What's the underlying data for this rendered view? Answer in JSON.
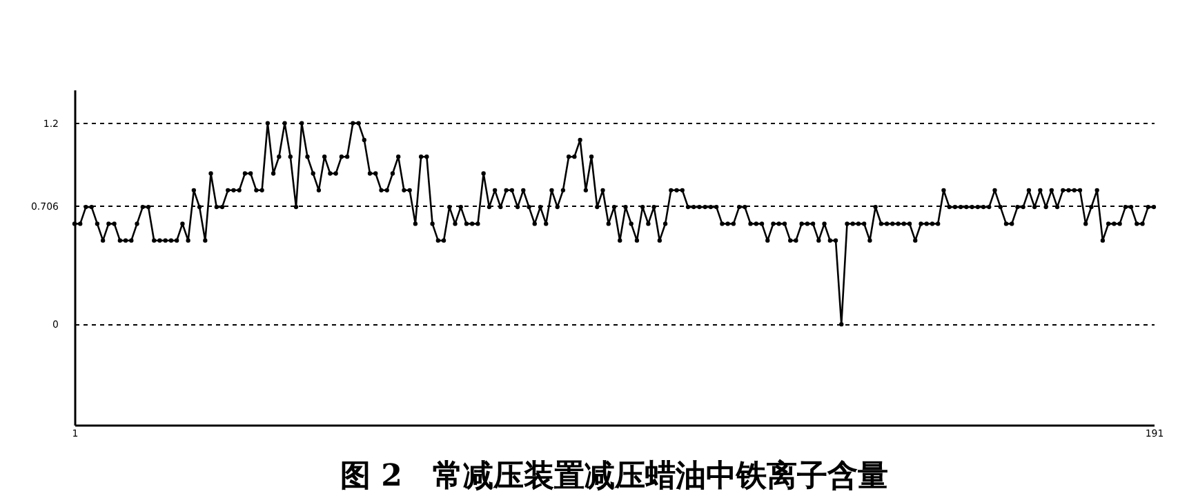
{
  "chart_data": {
    "type": "line",
    "title": "图 2　常减压装置减压蜡油中铁离子含量",
    "x": [
      1,
      2,
      3,
      4,
      5,
      6,
      7,
      8,
      9,
      10,
      11,
      12,
      13,
      14,
      15,
      16,
      17,
      18,
      19,
      20,
      21,
      22,
      23,
      24,
      25,
      26,
      27,
      28,
      29,
      30,
      31,
      32,
      33,
      34,
      35,
      36,
      37,
      38,
      39,
      40,
      41,
      42,
      43,
      44,
      45,
      46,
      47,
      48,
      49,
      50,
      51,
      52,
      53,
      54,
      55,
      56,
      57,
      58,
      59,
      60,
      61,
      62,
      63,
      64,
      65,
      66,
      67,
      68,
      69,
      70,
      71,
      72,
      73,
      74,
      75,
      76,
      77,
      78,
      79,
      80,
      81,
      82,
      83,
      84,
      85,
      86,
      87,
      88,
      89,
      90,
      91,
      92,
      93,
      94,
      95,
      96,
      97,
      98,
      99,
      100,
      101,
      102,
      103,
      104,
      105,
      106,
      107,
      108,
      109,
      110,
      111,
      112,
      113,
      114,
      115,
      116,
      117,
      118,
      119,
      120,
      121,
      122,
      123,
      124,
      125,
      126,
      127,
      128,
      129,
      130,
      131,
      132,
      133,
      134,
      135,
      136,
      137,
      138,
      139,
      140,
      141,
      142,
      143,
      144,
      145,
      146,
      147,
      148,
      149,
      150,
      151,
      152,
      153,
      154,
      155,
      156,
      157,
      158,
      159,
      160,
      161,
      162,
      163,
      164,
      165,
      166,
      167,
      168,
      169,
      170,
      171,
      172,
      173,
      174,
      175,
      176,
      177,
      178,
      179,
      180,
      181,
      182,
      183,
      184,
      185,
      186,
      187,
      188,
      189,
      190,
      191
    ],
    "series": [
      {
        "color": "#000000",
        "values": [
          0.6,
          0.6,
          0.7,
          0.7,
          0.6,
          0.5,
          0.6,
          0.6,
          0.5,
          0.5,
          0.5,
          0.6,
          0.7,
          0.7,
          0.5,
          0.5,
          0.5,
          0.5,
          0.5,
          0.6,
          0.5,
          0.8,
          0.7,
          0.5,
          0.9,
          0.7,
          0.7,
          0.8,
          0.8,
          0.8,
          0.9,
          0.9,
          0.8,
          0.8,
          1.2,
          0.9,
          1.0,
          1.2,
          1.0,
          0.7,
          1.2,
          1.0,
          0.9,
          0.8,
          1.0,
          0.9,
          0.9,
          1.0,
          1.0,
          1.2,
          1.2,
          1.1,
          0.9,
          0.9,
          0.8,
          0.8,
          0.9,
          1.0,
          0.8,
          0.8,
          0.6,
          1.0,
          1.0,
          0.6,
          0.5,
          0.5,
          0.7,
          0.6,
          0.7,
          0.6,
          0.6,
          0.6,
          0.9,
          0.7,
          0.8,
          0.7,
          0.8,
          0.8,
          0.7,
          0.8,
          0.7,
          0.6,
          0.7,
          0.6,
          0.8,
          0.7,
          0.8,
          1.0,
          1.0,
          1.1,
          0.8,
          1.0,
          0.7,
          0.8,
          0.6,
          0.7,
          0.5,
          0.7,
          0.6,
          0.5,
          0.7,
          0.6,
          0.7,
          0.5,
          0.6,
          0.8,
          0.8,
          0.8,
          0.7,
          0.7,
          0.7,
          0.7,
          0.7,
          0.7,
          0.6,
          0.6,
          0.6,
          0.7,
          0.7,
          0.6,
          0.6,
          0.6,
          0.5,
          0.6,
          0.6,
          0.6,
          0.5,
          0.5,
          0.6,
          0.6,
          0.6,
          0.5,
          0.6,
          0.5,
          0.5,
          0,
          0.6,
          0.6,
          0.6,
          0.6,
          0.5,
          0.7,
          0.6,
          0.6,
          0.6,
          0.6,
          0.6,
          0.6,
          0.5,
          0.6,
          0.6,
          0.6,
          0.6,
          0.8,
          0.7,
          0.7,
          0.7,
          0.7,
          0.7,
          0.7,
          0.7,
          0.7,
          0.8,
          0.7,
          0.6,
          0.6,
          0.7,
          0.7,
          0.8,
          0.7,
          0.8,
          0.7,
          0.8,
          0.7,
          0.8,
          0.8,
          0.8,
          0.8,
          0.6,
          0.7,
          0.8,
          0.5,
          0.6,
          0.6,
          0.6,
          0.7,
          0.7,
          0.6,
          0.6,
          0.7,
          0.7
        ]
      }
    ],
    "xlim": [
      1,
      191
    ],
    "xticks": [
      1,
      191
    ],
    "ylim": [
      -0.6,
      1.4
    ],
    "yticks": [
      0,
      0.706,
      1.2
    ],
    "grid": "y",
    "marker": "circle",
    "line_style": "solid"
  }
}
